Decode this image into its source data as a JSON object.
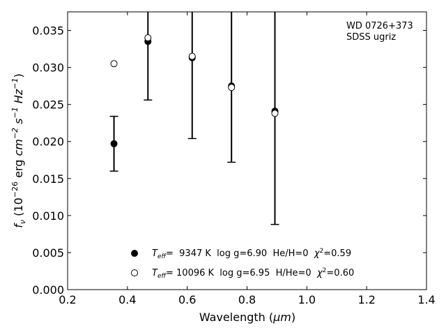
{
  "chart_data": {
    "type": "scatter",
    "xlabel_main": "Wavelength (",
    "xlabel_unit": "μm",
    "xlabel_end": ")",
    "ylabel": {
      "symbol": "f",
      "sub": "ν",
      "open": " (10",
      "exp1": "−26",
      "units_erg": " erg ",
      "cm": "cm",
      "exp2": "−2",
      "s": "s",
      "exp3": "−1",
      "hz": "Hz",
      "exp4": "−1",
      "close": ")"
    },
    "xlim": [
      0.2,
      1.4
    ],
    "ylim": [
      0.0,
      0.0375
    ],
    "xticks": [
      0.2,
      0.4,
      0.6,
      0.8,
      1.0,
      1.2,
      1.4
    ],
    "xtick_labels": [
      "0.2",
      "0.4",
      "0.6",
      "0.8",
      "1.0",
      "1.2",
      "1.4"
    ],
    "yticks": [
      0.0,
      0.005,
      0.01,
      0.015,
      0.02,
      0.025,
      0.03,
      0.035
    ],
    "ytick_labels": [
      "0.000",
      "0.005",
      "0.010",
      "0.015",
      "0.020",
      "0.025",
      "0.030",
      "0.035"
    ],
    "annotation": [
      "WD 0726+373",
      "SDSS ugriz"
    ],
    "grid": false,
    "legend_position": "lower-center",
    "observed": {
      "x": [
        0.3551,
        0.4686,
        0.6166,
        0.748,
        0.8932
      ],
      "y": [
        0.0197,
        0.0335,
        0.0313,
        0.0275,
        0.0241
      ],
      "err": [
        0.0037,
        0.0079,
        0.0109,
        0.0103,
        0.0153
      ]
    },
    "series": [
      {
        "marker": "filled",
        "label_T": "T",
        "label_sub": "eff",
        "label_rest": "=  9347 K  log g=6.90  He/H=0  ",
        "label_chi": "χ",
        "label_chi_exp": "2",
        "label_chi_val": "=0.59",
        "x": [
          0.3551,
          0.4686,
          0.6166,
          0.748,
          0.8932
        ],
        "y": [
          0.0197,
          0.0335,
          0.0313,
          0.0275,
          0.0241
        ]
      },
      {
        "marker": "open",
        "label_T": "T",
        "label_sub": "eff",
        "label_rest": "= 10096 K  log g=6.95  H/He=0  ",
        "label_chi": "χ",
        "label_chi_exp": "2",
        "label_chi_val": "=0.60",
        "x": [
          0.3551,
          0.4686,
          0.6166,
          0.748,
          0.8932
        ],
        "y": [
          0.0305,
          0.034,
          0.0315,
          0.0273,
          0.0238
        ]
      }
    ]
  }
}
